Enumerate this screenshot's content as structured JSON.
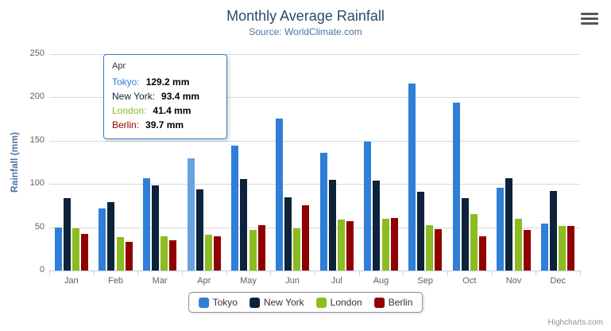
{
  "chart_data": {
    "type": "bar",
    "title": "Monthly Average Rainfall",
    "subtitle": "Source: WorldClimate.com",
    "categories": [
      "Jan",
      "Feb",
      "Mar",
      "Apr",
      "May",
      "Jun",
      "Jul",
      "Aug",
      "Sep",
      "Oct",
      "Nov",
      "Dec"
    ],
    "series": [
      {
        "name": "Tokyo",
        "color": "#2f7ed8",
        "values": [
          49.9,
          71.5,
          106.4,
          129.2,
          144.0,
          176.0,
          135.6,
          148.5,
          216.4,
          194.1,
          95.6,
          54.4
        ]
      },
      {
        "name": "New York",
        "color": "#0d233a",
        "values": [
          83.6,
          78.8,
          98.5,
          93.4,
          106.0,
          84.5,
          105.0,
          104.3,
          91.2,
          83.5,
          106.6,
          92.3
        ]
      },
      {
        "name": "London",
        "color": "#8bbc21",
        "values": [
          48.9,
          38.8,
          39.3,
          41.4,
          47.0,
          48.3,
          59.0,
          59.6,
          52.4,
          65.2,
          59.3,
          51.2
        ]
      },
      {
        "name": "Berlin",
        "color": "#910000",
        "values": [
          42.4,
          33.2,
          34.5,
          39.7,
          52.6,
          75.5,
          57.4,
          60.4,
          47.6,
          39.1,
          46.8,
          51.1
        ]
      }
    ],
    "xlabel": "",
    "ylabel": "Rainfall (mm)",
    "ylim": [
      0,
      250
    ],
    "ytick_interval": 50,
    "grid": true,
    "legend_position": "bottom",
    "hover": {
      "series": "Tokyo",
      "category": "Apr",
      "highlight_color": "#69a2e0"
    }
  },
  "tooltip": {
    "header": "Apr",
    "rows": [
      {
        "name": "Tokyo:",
        "value": "129.2 mm"
      },
      {
        "name": "New York:",
        "value": "93.4 mm"
      },
      {
        "name": "London:",
        "value": "41.4 mm"
      },
      {
        "name": "Berlin:",
        "value": "39.7 mm"
      }
    ]
  },
  "credits": "Highcharts.com"
}
